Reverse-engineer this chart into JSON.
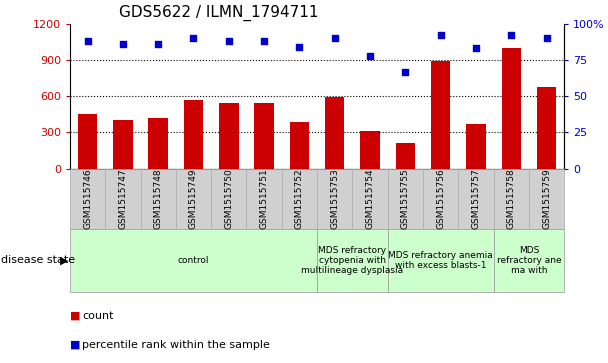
{
  "title": "GDS5622 / ILMN_1794711",
  "samples": [
    "GSM1515746",
    "GSM1515747",
    "GSM1515748",
    "GSM1515749",
    "GSM1515750",
    "GSM1515751",
    "GSM1515752",
    "GSM1515753",
    "GSM1515754",
    "GSM1515755",
    "GSM1515756",
    "GSM1515757",
    "GSM1515758",
    "GSM1515759"
  ],
  "counts": [
    450,
    400,
    420,
    570,
    540,
    540,
    390,
    590,
    310,
    210,
    890,
    370,
    1000,
    680
  ],
  "percentiles": [
    88,
    86,
    86,
    90,
    88,
    88,
    84,
    90,
    78,
    67,
    92,
    83,
    92,
    90
  ],
  "bar_color": "#cc0000",
  "dot_color": "#0000cc",
  "ylim_left": [
    0,
    1200
  ],
  "ylim_right": [
    0,
    100
  ],
  "yticks_left": [
    0,
    300,
    600,
    900,
    1200
  ],
  "ytick_labels_right": [
    "0",
    "25",
    "50",
    "75",
    "100%"
  ],
  "yticks_right": [
    0,
    25,
    50,
    75,
    100
  ],
  "grid_vals": [
    300,
    600,
    900
  ],
  "group_starts": [
    0,
    7,
    9,
    12
  ],
  "group_ends": [
    7,
    9,
    12,
    14
  ],
  "group_texts": [
    "control",
    "MDS refractory\ncytopenia with\nmultilineage dysplasia",
    "MDS refractory anemia\nwith excess blasts-1",
    "MDS\nrefractory ane\nma with"
  ],
  "group_color": "#ccffcc",
  "xtick_bg": "#d0d0d0",
  "disease_state_label": "disease state",
  "legend_count_label": "count",
  "legend_pct_label": "percentile rank within the sample"
}
